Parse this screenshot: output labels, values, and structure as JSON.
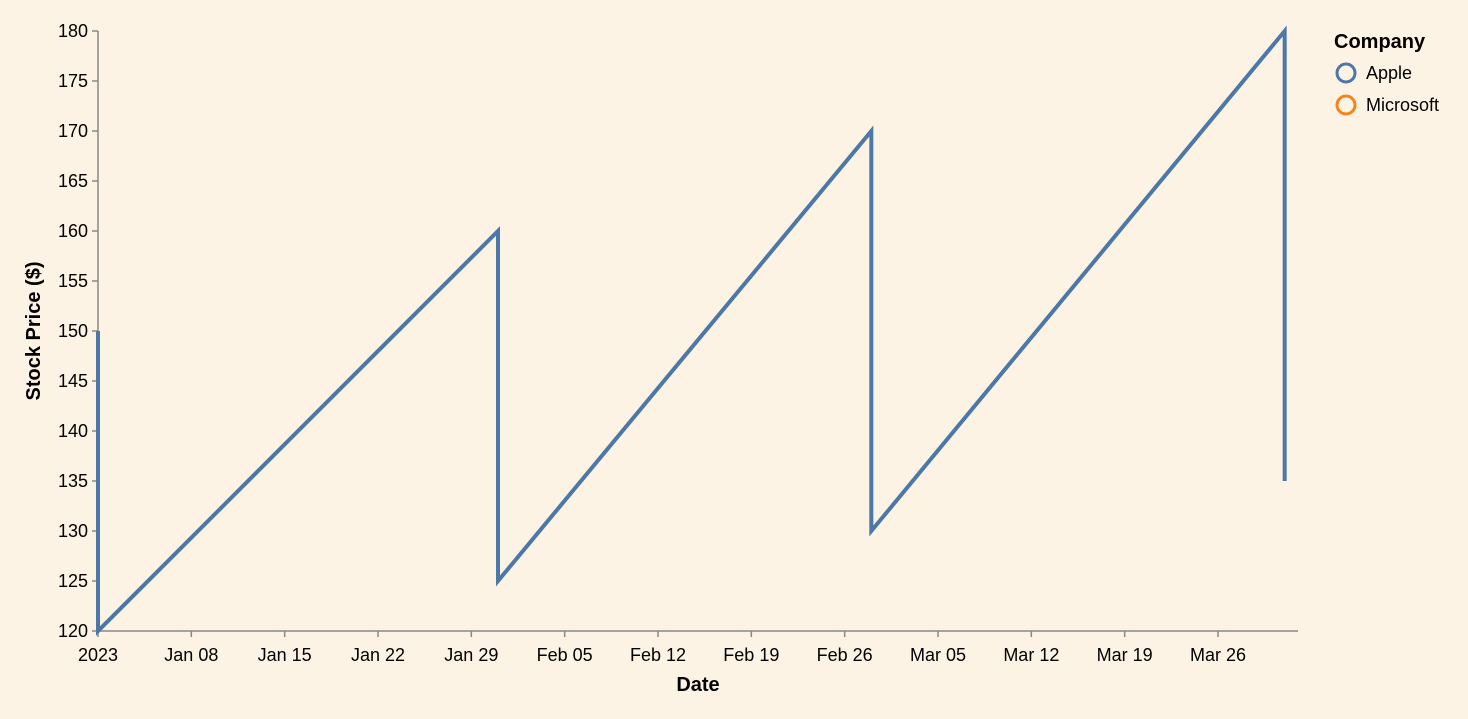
{
  "chart_data": {
    "type": "line",
    "xlabel": "Date",
    "ylabel": "Stock Price ($)",
    "ylim": [
      120,
      180
    ],
    "xlim": [
      "2023-01-01",
      "2023-04-01"
    ],
    "y_ticks": [
      120,
      125,
      130,
      135,
      140,
      145,
      150,
      155,
      160,
      165,
      170,
      175,
      180
    ],
    "x_ticks": [
      {
        "date": "2023-01-01",
        "label": "2023"
      },
      {
        "date": "2023-01-08",
        "label": "Jan 08"
      },
      {
        "date": "2023-01-15",
        "label": "Jan 15"
      },
      {
        "date": "2023-01-22",
        "label": "Jan 22"
      },
      {
        "date": "2023-01-29",
        "label": "Jan 29"
      },
      {
        "date": "2023-02-05",
        "label": "Feb 05"
      },
      {
        "date": "2023-02-12",
        "label": "Feb 12"
      },
      {
        "date": "2023-02-19",
        "label": "Feb 19"
      },
      {
        "date": "2023-02-26",
        "label": "Feb 26"
      },
      {
        "date": "2023-03-05",
        "label": "Mar 05"
      },
      {
        "date": "2023-03-12",
        "label": "Mar 12"
      },
      {
        "date": "2023-03-19",
        "label": "Mar 19"
      },
      {
        "date": "2023-03-26",
        "label": "Mar 26"
      }
    ],
    "legend": {
      "title": "Company",
      "position": "top-right",
      "items": [
        {
          "label": "Apple",
          "color": "#4c78a8"
        },
        {
          "label": "Microsoft",
          "color": "#f58518"
        }
      ]
    },
    "series": [
      {
        "name": "Apple",
        "color": "#4c78a8",
        "points": [
          {
            "x": "2023-01-01",
            "y": 150
          },
          {
            "x": "2023-01-01",
            "y": 120
          },
          {
            "x": "2023-01-31",
            "y": 160
          },
          {
            "x": "2023-01-31",
            "y": 125
          },
          {
            "x": "2023-02-28",
            "y": 170
          },
          {
            "x": "2023-02-28",
            "y": 130
          },
          {
            "x": "2023-03-31",
            "y": 180
          },
          {
            "x": "2023-03-31",
            "y": 135
          }
        ]
      }
    ],
    "grid": false
  }
}
